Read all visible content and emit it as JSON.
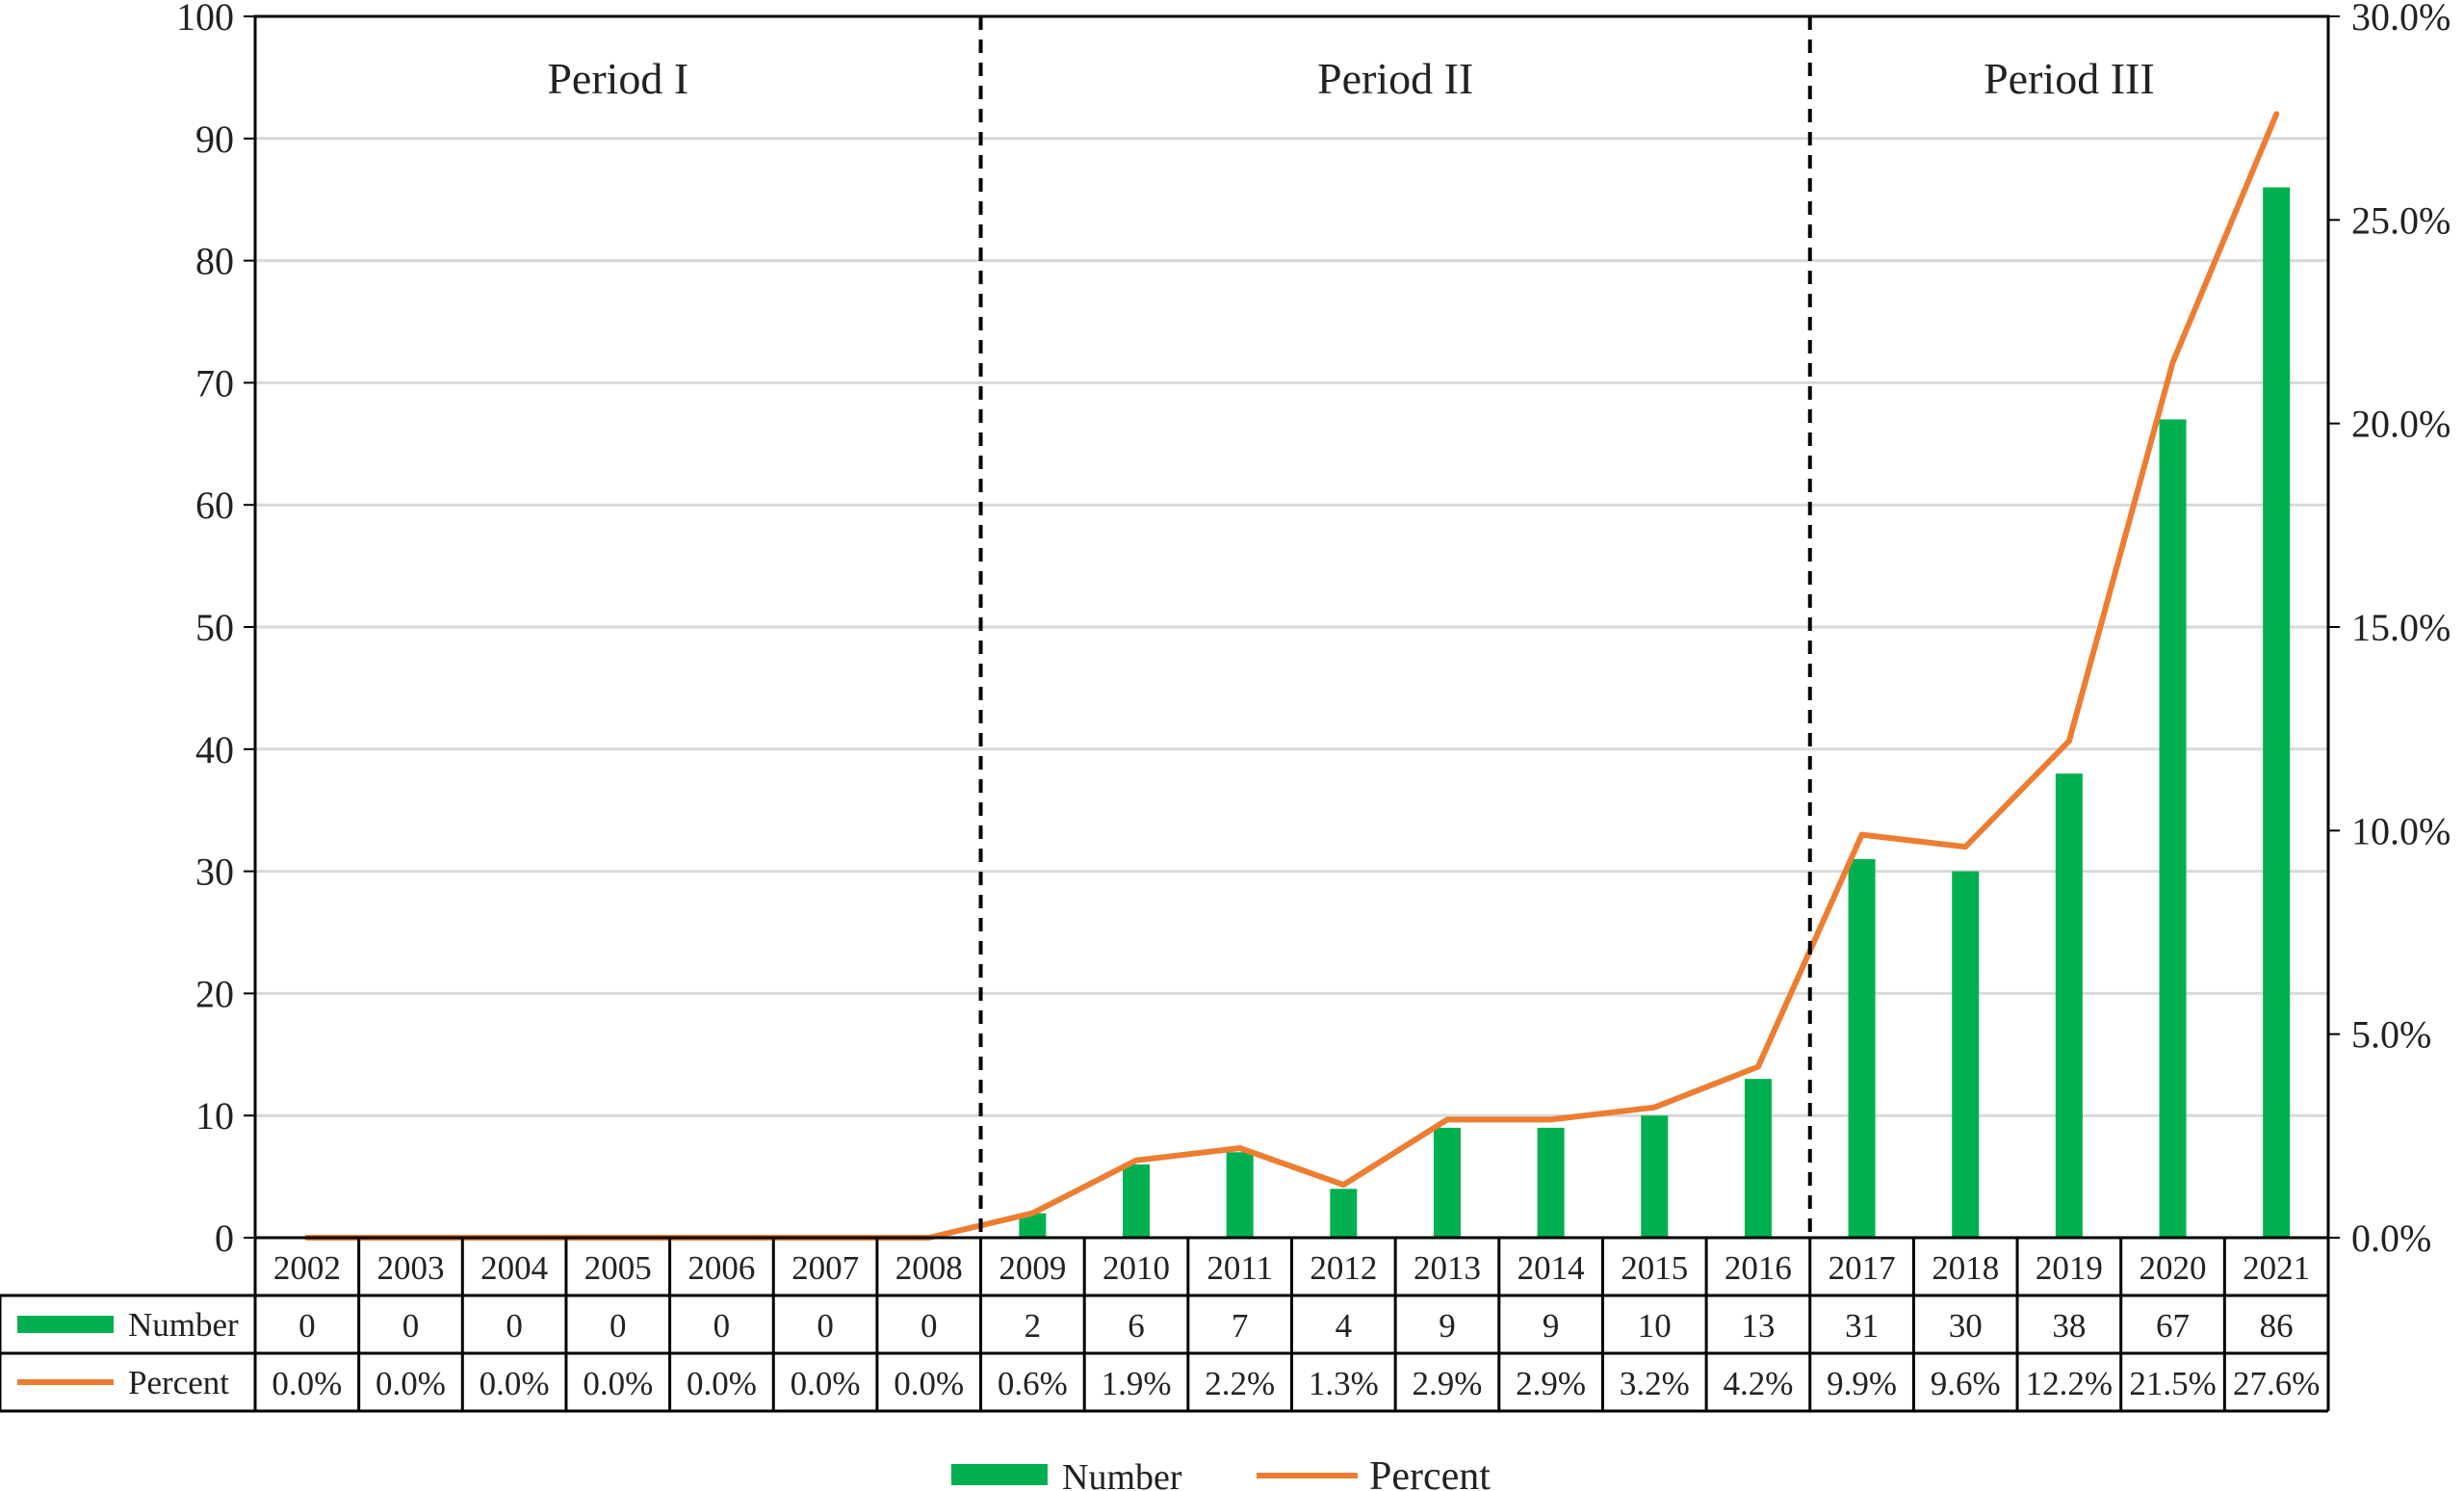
{
  "chart_data": {
    "type": "bar",
    "categories": [
      "2002",
      "2003",
      "2004",
      "2005",
      "2006",
      "2007",
      "2008",
      "2009",
      "2010",
      "2011",
      "2012",
      "2013",
      "2014",
      "2015",
      "2016",
      "2017",
      "2018",
      "2019",
      "2020",
      "2021"
    ],
    "series": [
      {
        "name": "Number",
        "type": "bar",
        "axis": "left",
        "color": "#00b050",
        "values": [
          0,
          0,
          0,
          0,
          0,
          0,
          0,
          2,
          6,
          7,
          4,
          9,
          9,
          10,
          13,
          31,
          30,
          38,
          67,
          86
        ]
      },
      {
        "name": "Percent",
        "type": "line",
        "axis": "right",
        "color": "#ed7d31",
        "values": [
          0.0,
          0.0,
          0.0,
          0.0,
          0.0,
          0.0,
          0.0,
          0.6,
          1.9,
          2.2,
          1.3,
          2.9,
          2.9,
          3.2,
          4.2,
          9.9,
          9.6,
          12.2,
          21.5,
          27.6
        ],
        "labels": [
          "0.0%",
          "0.0%",
          "0.0%",
          "0.0%",
          "0.0%",
          "0.0%",
          "0.0%",
          "0.6%",
          "1.9%",
          "2.2%",
          "1.3%",
          "2.9%",
          "2.9%",
          "3.2%",
          "4.2%",
          "9.9%",
          "9.6%",
          "12.2%",
          "21.5%",
          "27.6%"
        ]
      }
    ],
    "y_left": {
      "ylim": [
        0,
        100
      ],
      "ticks": [
        "0",
        "10",
        "20",
        "30",
        "40",
        "50",
        "60",
        "70",
        "80",
        "90",
        "100"
      ]
    },
    "y_right": {
      "ylim": [
        0,
        30
      ],
      "ticks": [
        "0.0%",
        "5.0%",
        "10.0%",
        "15.0%",
        "20.0%",
        "25.0%",
        "30.0%"
      ]
    },
    "periods": [
      {
        "label": "Period I",
        "start": "2002",
        "end": "2008"
      },
      {
        "label": "Period II",
        "start": "2009",
        "end": "2016"
      },
      {
        "label": "Period III",
        "start": "2017",
        "end": "2021"
      }
    ],
    "grid": true,
    "legend": {
      "position": "bottom",
      "items": [
        "Number",
        "Percent"
      ]
    },
    "table_rows": [
      "Number",
      "Percent"
    ],
    "colors": {
      "bar": "#00b050",
      "line": "#ed7d31",
      "grid": "#d9d9d9",
      "divider": "#000000"
    }
  }
}
